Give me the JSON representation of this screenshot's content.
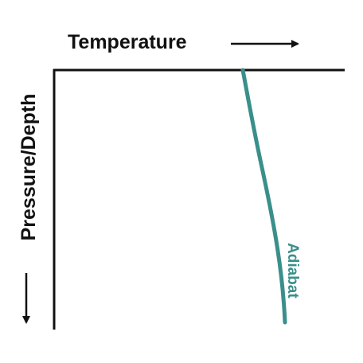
{
  "axes": {
    "x_label": "Temperature",
    "y_label": "Pressure/Depth"
  },
  "curves": [
    {
      "label": "Adiabat"
    }
  ]
}
